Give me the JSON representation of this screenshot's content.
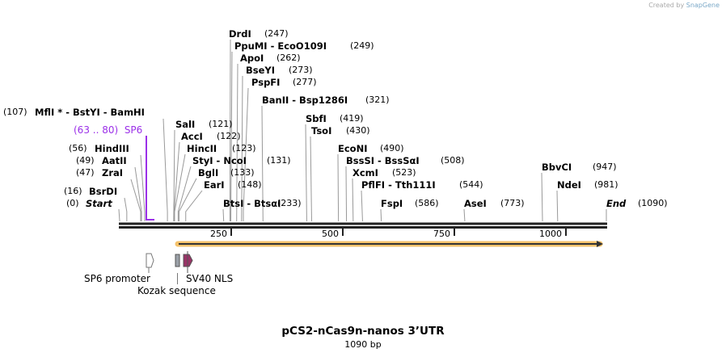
{
  "watermark": {
    "prefix": "Created by",
    "brand": "SnapGene"
  },
  "sequence": {
    "title": "pCS2-nCas9n-nanos 3’UTR",
    "length_label": "1090 bp",
    "length": 1090
  },
  "ruler": {
    "ticks": [
      "250",
      "500",
      "750",
      "1000"
    ]
  },
  "primer": {
    "name": "SP6",
    "range": "(63 .. 80)",
    "color": "#9b30e8"
  },
  "enzymes": [
    {
      "name": "DrdI",
      "pos": "(247)",
      "site": 247
    },
    {
      "name": "PpuMI  - EcoO109I",
      "pos": "(249)",
      "site": 249
    },
    {
      "name": "ApoI",
      "pos": "(262)",
      "site": 262
    },
    {
      "name": "BseYI",
      "pos": "(273)",
      "site": 273
    },
    {
      "name": "PspFI",
      "pos": "(277)",
      "site": 277
    },
    {
      "name": "BanII  - Bsp1286I",
      "pos": "(321)",
      "site": 321
    },
    {
      "name": "SbfI",
      "pos": "(419)",
      "site": 419
    },
    {
      "name": "TsoI",
      "pos": "(430)",
      "site": 430
    },
    {
      "name": "EcoNI",
      "pos": "(490)",
      "site": 490
    },
    {
      "name": "BssSI  - BssSαI",
      "pos": "(508)",
      "site": 508
    },
    {
      "name": "XcmI",
      "pos": "(523)",
      "site": 523
    },
    {
      "name": "PflFI  - Tth111I",
      "pos": "(544)",
      "site": 544
    },
    {
      "name": "FspI",
      "pos": "(586)",
      "site": 586
    },
    {
      "name": "AseI",
      "pos": "(773)",
      "site": 773
    },
    {
      "name": "BbvCI",
      "pos": "(947)",
      "site": 947
    },
    {
      "name": "NdeI",
      "pos": "(981)",
      "site": 981
    },
    {
      "name": "End",
      "pos": "(1090)",
      "site": 1090
    },
    {
      "name": "BtsI  - BtsαI",
      "pos": "(233)",
      "site": 233
    },
    {
      "name": "Start",
      "pos": "(0)",
      "site": 0
    },
    {
      "name": "BsrDI",
      "pos": "(16)",
      "site": 16
    },
    {
      "name": "ZraI",
      "pos": "(47)",
      "site": 47
    },
    {
      "name": "AatII",
      "pos": "(49)",
      "site": 49
    },
    {
      "name": "HindIII",
      "pos": "(56)",
      "site": 56
    },
    {
      "name": "MflI *  - BstYI  - BamHI",
      "pos": "(107)",
      "site": 107
    },
    {
      "name": "SalI",
      "pos": "(121)",
      "site": 121
    },
    {
      "name": "AccI",
      "pos": "(122)",
      "site": 122
    },
    {
      "name": "HincII",
      "pos": "(123)",
      "site": 123
    },
    {
      "name": "StyI  - NcoI",
      "pos": "(131)",
      "site": 131
    },
    {
      "name": "BglI",
      "pos": "(133)",
      "site": 133
    },
    {
      "name": "EarI",
      "pos": "(148)",
      "site": 148
    }
  ],
  "features": [
    {
      "name": "SP6 promoter",
      "color": "#ffffff"
    },
    {
      "name": "Kozak sequence",
      "color": "#9aa0a8"
    },
    {
      "name": "SV40 NLS",
      "color": "#993366"
    }
  ],
  "orf_color": "#f5c26b"
}
